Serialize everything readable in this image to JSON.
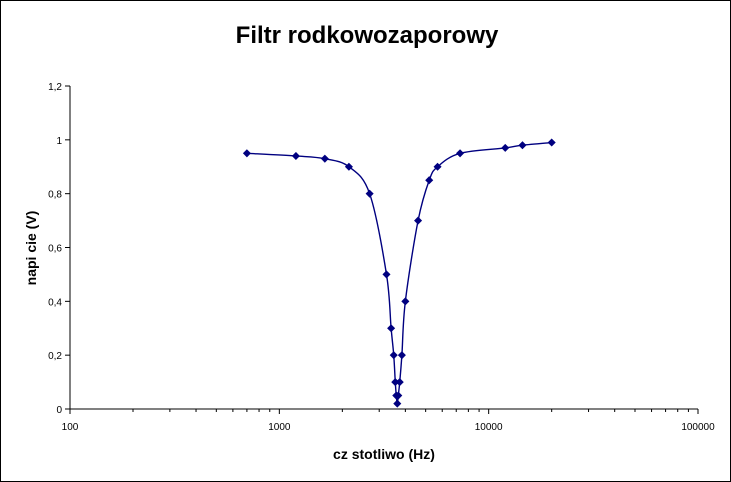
{
  "chart_data": {
    "type": "scatter",
    "title": "Filtr   rodkowozaporowy",
    "xlabel": "cz  stotliwo     (Hz)",
    "ylabel": "napi  cie (V)",
    "x_scale": "log",
    "xlim": [
      100,
      100000
    ],
    "ylim": [
      0,
      1.2
    ],
    "x_ticks": [
      100,
      1000,
      10000,
      100000
    ],
    "x_tick_labels": [
      "100",
      "1000",
      "10000",
      "100000"
    ],
    "y_ticks": [
      0,
      0.2,
      0.4,
      0.6,
      0.8,
      1.0,
      1.2
    ],
    "y_tick_labels": [
      "0",
      "0,2",
      "0,4",
      "0,6",
      "0,8",
      "1",
      "1,2"
    ],
    "grid": false,
    "legend": "none",
    "series": [
      {
        "color": "#000080",
        "marker": "diamond",
        "smoothed": true,
        "points": [
          {
            "x": 700,
            "y": 0.95
          },
          {
            "x": 1200,
            "y": 0.94
          },
          {
            "x": 1650,
            "y": 0.93
          },
          {
            "x": 2150,
            "y": 0.9
          },
          {
            "x": 2700,
            "y": 0.8
          },
          {
            "x": 3250,
            "y": 0.5
          },
          {
            "x": 3420,
            "y": 0.3
          },
          {
            "x": 3520,
            "y": 0.2
          },
          {
            "x": 3580,
            "y": 0.1
          },
          {
            "x": 3620,
            "y": 0.05
          },
          {
            "x": 3660,
            "y": 0.02
          },
          {
            "x": 3700,
            "y": 0.05
          },
          {
            "x": 3760,
            "y": 0.1
          },
          {
            "x": 3850,
            "y": 0.2
          },
          {
            "x": 4000,
            "y": 0.4
          },
          {
            "x": 4600,
            "y": 0.7
          },
          {
            "x": 5200,
            "y": 0.85
          },
          {
            "x": 5700,
            "y": 0.9
          },
          {
            "x": 7300,
            "y": 0.95
          },
          {
            "x": 12000,
            "y": 0.97
          },
          {
            "x": 14500,
            "y": 0.98
          },
          {
            "x": 20000,
            "y": 0.99
          }
        ]
      }
    ]
  }
}
